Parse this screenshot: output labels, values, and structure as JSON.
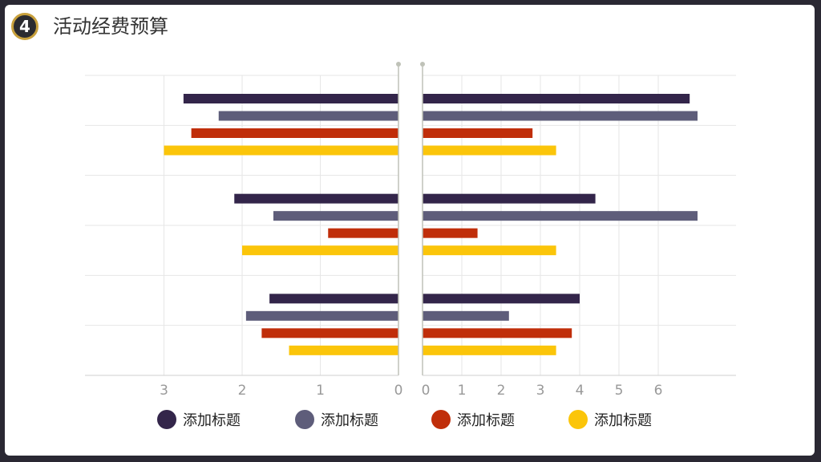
{
  "header": {
    "number": "4",
    "title": "活动经费预算"
  },
  "legend": [
    {
      "label": "添加标题",
      "color": "#33254a"
    },
    {
      "label": "添加标题",
      "color": "#5e5d7a"
    },
    {
      "label": "添加标题",
      "color": "#c02e0a"
    },
    {
      "label": "添加标题",
      "color": "#fbc50a"
    }
  ],
  "chart_data": {
    "type": "bar",
    "orientation": "horizontal",
    "layout": "butterfly",
    "legend_position": "bottom",
    "grid": true,
    "left_axis": {
      "ticks": [
        "3",
        "2",
        "1",
        "0"
      ],
      "range": [
        0,
        3
      ],
      "reversed": true
    },
    "right_axis": {
      "ticks": [
        "0",
        "1",
        "2",
        "3",
        "4",
        "5",
        "6"
      ],
      "range": [
        0,
        7
      ]
    },
    "groups": 3,
    "series": [
      {
        "color": "#33254a",
        "left": [
          2.75,
          2.1,
          1.65
        ],
        "right": [
          6.8,
          4.4,
          4.0
        ]
      },
      {
        "color": "#5e5d7a",
        "left": [
          2.3,
          1.6,
          1.95
        ],
        "right": [
          7.0,
          7.0,
          2.2
        ]
      },
      {
        "color": "#c02e0a",
        "left": [
          2.65,
          0.9,
          1.75
        ],
        "right": [
          2.8,
          1.4,
          3.8
        ]
      },
      {
        "color": "#fbc50a",
        "left": [
          3.0,
          2.0,
          1.4
        ],
        "right": [
          3.4,
          3.4,
          3.4
        ]
      }
    ]
  }
}
